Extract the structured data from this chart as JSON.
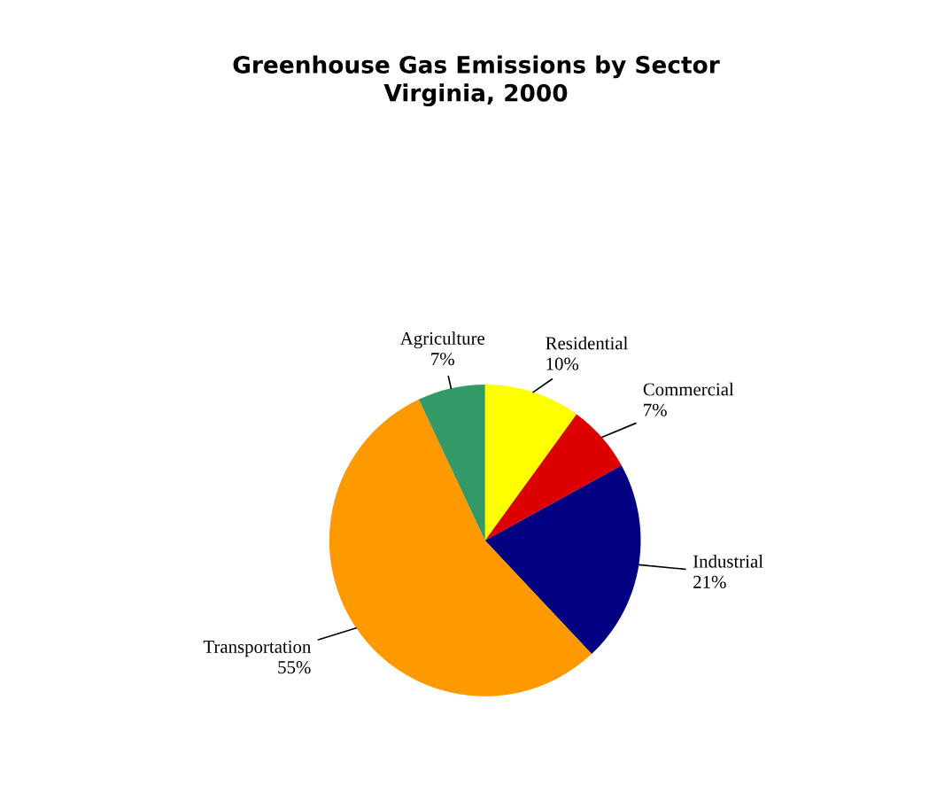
{
  "chart_data": {
    "type": "pie",
    "title": "Greenhouse Gas Emissions by Sector\nVirginia, 2000",
    "categories": [
      "Residential",
      "Commercial",
      "Industrial",
      "Transportation",
      "Agriculture"
    ],
    "values": [
      10,
      7,
      21,
      55,
      7
    ],
    "value_labels": [
      "10%",
      "7%",
      "21%",
      "55%",
      "7%"
    ],
    "colors": [
      "#ffff00",
      "#dd0000",
      "#000080",
      "#ff9900",
      "#339966"
    ],
    "legend": false
  }
}
